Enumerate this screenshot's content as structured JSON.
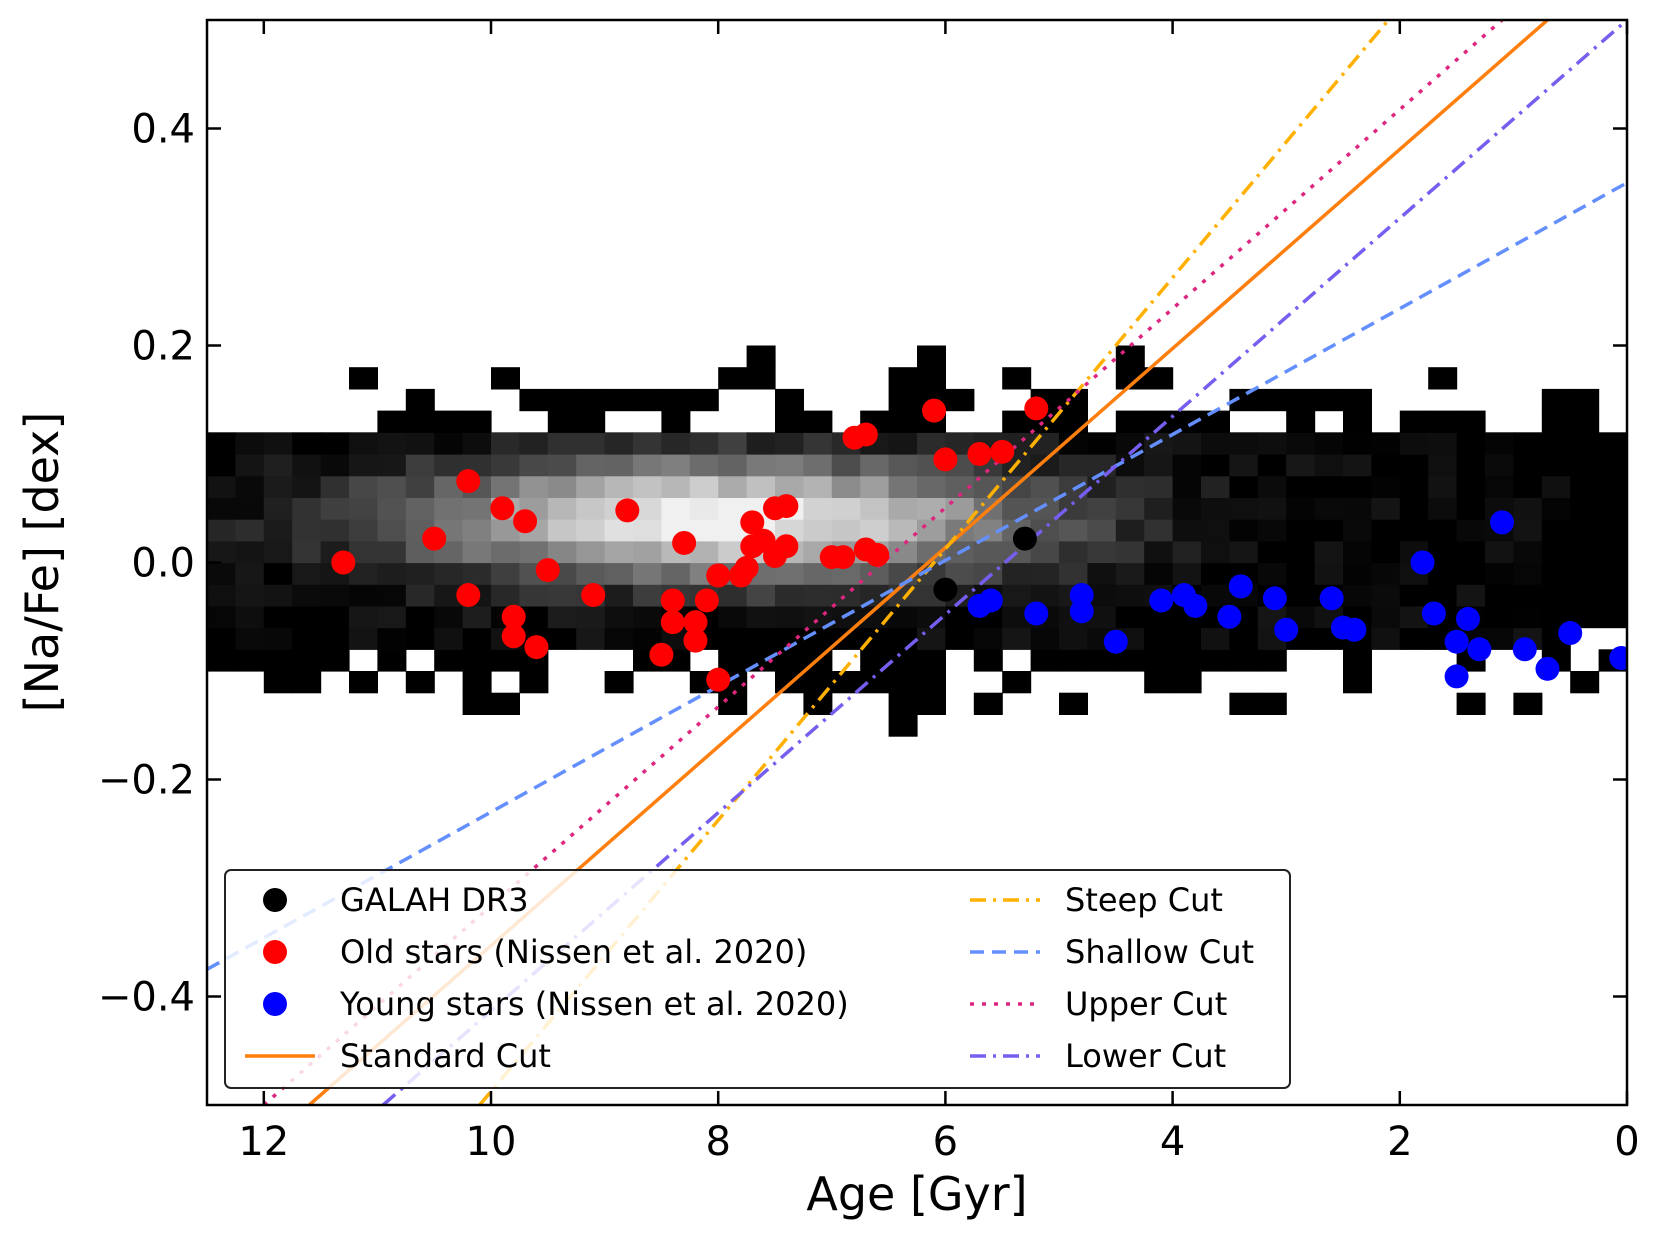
{
  "chart_data": {
    "type": "scatter",
    "title": "",
    "xlabel": "Age [Gyr]",
    "ylabel": "[Na/Fe] [dex]",
    "xlim": [
      12.5,
      0
    ],
    "ylim": [
      -0.5,
      0.5
    ],
    "x_inverted": true,
    "xticks": [
      12,
      10,
      8,
      6,
      4,
      2,
      0
    ],
    "xtick_labels": [
      "12",
      "10",
      "8",
      "6",
      "4",
      "2",
      "0"
    ],
    "yticks": [
      0.4,
      0.2,
      0.0,
      -0.2,
      -0.4
    ],
    "ytick_labels": [
      "0.4",
      "0.2",
      "0.0",
      "−0.2",
      "−0.4"
    ],
    "grid": false,
    "legend_position": "lower-left",
    "background_density": {
      "description_visible": "2D histogram of GALAH DR3 stars in grayscale",
      "colormap": "gray",
      "core_region": {
        "age_range": [
          12.5,
          0.5
        ],
        "nafe_range": [
          -0.08,
          0.12
        ]
      },
      "densest_at": {
        "age": 8.0,
        "nafe": 0.04
      }
    },
    "series": [
      {
        "name": "GALAH DR3",
        "kind": "scatter",
        "color": "#000000",
        "points": [
          [
            6.0,
            -0.025
          ],
          [
            5.3,
            0.022
          ]
        ]
      },
      {
        "name": "Old stars (Nissen et al. 2020)",
        "kind": "scatter",
        "color": "#ff0000",
        "points": [
          [
            11.3,
            0.0
          ],
          [
            10.5,
            0.022
          ],
          [
            10.2,
            0.075
          ],
          [
            10.2,
            -0.03
          ],
          [
            9.9,
            0.05
          ],
          [
            9.8,
            -0.05
          ],
          [
            9.8,
            -0.068
          ],
          [
            9.7,
            0.038
          ],
          [
            9.6,
            -0.078
          ],
          [
            9.5,
            -0.007
          ],
          [
            9.1,
            -0.03
          ],
          [
            8.8,
            0.048
          ],
          [
            8.5,
            -0.085
          ],
          [
            8.4,
            -0.035
          ],
          [
            8.4,
            -0.055
          ],
          [
            8.3,
            0.018
          ],
          [
            8.2,
            -0.055
          ],
          [
            8.2,
            -0.072
          ],
          [
            8.1,
            -0.035
          ],
          [
            8.0,
            -0.012
          ],
          [
            8.0,
            -0.108
          ],
          [
            7.8,
            -0.012
          ],
          [
            7.75,
            -0.005
          ],
          [
            7.7,
            0.037
          ],
          [
            7.7,
            0.015
          ],
          [
            7.6,
            0.02
          ],
          [
            7.5,
            0.05
          ],
          [
            7.5,
            0.006
          ],
          [
            7.4,
            0.052
          ],
          [
            7.4,
            0.015
          ],
          [
            7.0,
            0.005
          ],
          [
            6.9,
            0.005
          ],
          [
            6.8,
            0.115
          ],
          [
            6.7,
            0.118
          ],
          [
            6.7,
            0.012
          ],
          [
            6.6,
            0.007
          ],
          [
            6.1,
            0.14
          ],
          [
            6.0,
            0.095
          ],
          [
            5.7,
            0.1
          ],
          [
            5.5,
            0.102
          ],
          [
            5.2,
            0.142
          ]
        ]
      },
      {
        "name": "Young stars (Nissen et al. 2020)",
        "kind": "scatter",
        "color": "#0000ff",
        "points": [
          [
            5.7,
            -0.04
          ],
          [
            5.6,
            -0.035
          ],
          [
            5.2,
            -0.047
          ],
          [
            4.8,
            -0.03
          ],
          [
            4.8,
            -0.045
          ],
          [
            4.5,
            -0.073
          ],
          [
            4.1,
            -0.035
          ],
          [
            3.9,
            -0.03
          ],
          [
            3.8,
            -0.04
          ],
          [
            3.5,
            -0.05
          ],
          [
            3.4,
            -0.022
          ],
          [
            3.1,
            -0.033
          ],
          [
            3.0,
            -0.062
          ],
          [
            2.6,
            -0.033
          ],
          [
            2.5,
            -0.06
          ],
          [
            2.4,
            -0.062
          ],
          [
            1.8,
            0.0
          ],
          [
            1.7,
            -0.047
          ],
          [
            1.5,
            -0.073
          ],
          [
            1.5,
            -0.105
          ],
          [
            1.4,
            -0.052
          ],
          [
            1.3,
            -0.08
          ],
          [
            1.1,
            0.037
          ],
          [
            0.9,
            -0.08
          ],
          [
            0.7,
            -0.098
          ],
          [
            0.5,
            -0.065
          ],
          [
            0.05,
            -0.088
          ]
        ]
      },
      {
        "name": "Standard Cut",
        "kind": "line",
        "style": "solid",
        "color": "#ff7f0e",
        "points": [
          [
            11.6,
            -0.5
          ],
          [
            0.7,
            0.5
          ]
        ]
      },
      {
        "name": "Steep Cut",
        "kind": "line",
        "style": "dashdot",
        "color": "#ffb000",
        "points": [
          [
            10.1,
            -0.5
          ],
          [
            2.1,
            0.5
          ]
        ]
      },
      {
        "name": "Shallow Cut",
        "kind": "line",
        "style": "dashed",
        "color": "#648fff",
        "points": [
          [
            12.5,
            -0.375
          ],
          [
            0.0,
            0.35
          ]
        ]
      },
      {
        "name": "Upper Cut",
        "kind": "line",
        "style": "dotted",
        "color": "#dc267f",
        "points": [
          [
            12.0,
            -0.5
          ],
          [
            1.1,
            0.5
          ]
        ]
      },
      {
        "name": "Lower Cut",
        "kind": "line",
        "style": "dashdot",
        "color": "#785ef0",
        "points": [
          [
            10.95,
            -0.5
          ],
          [
            0.0,
            0.5
          ]
        ]
      }
    ],
    "legend": {
      "columns": 2,
      "entries": [
        "GALAH DR3",
        "Old stars (Nissen et al. 2020)",
        "Young stars (Nissen et al. 2020)",
        "Standard Cut",
        "Steep Cut",
        "Shallow Cut",
        "Upper Cut",
        "Lower Cut"
      ]
    }
  }
}
